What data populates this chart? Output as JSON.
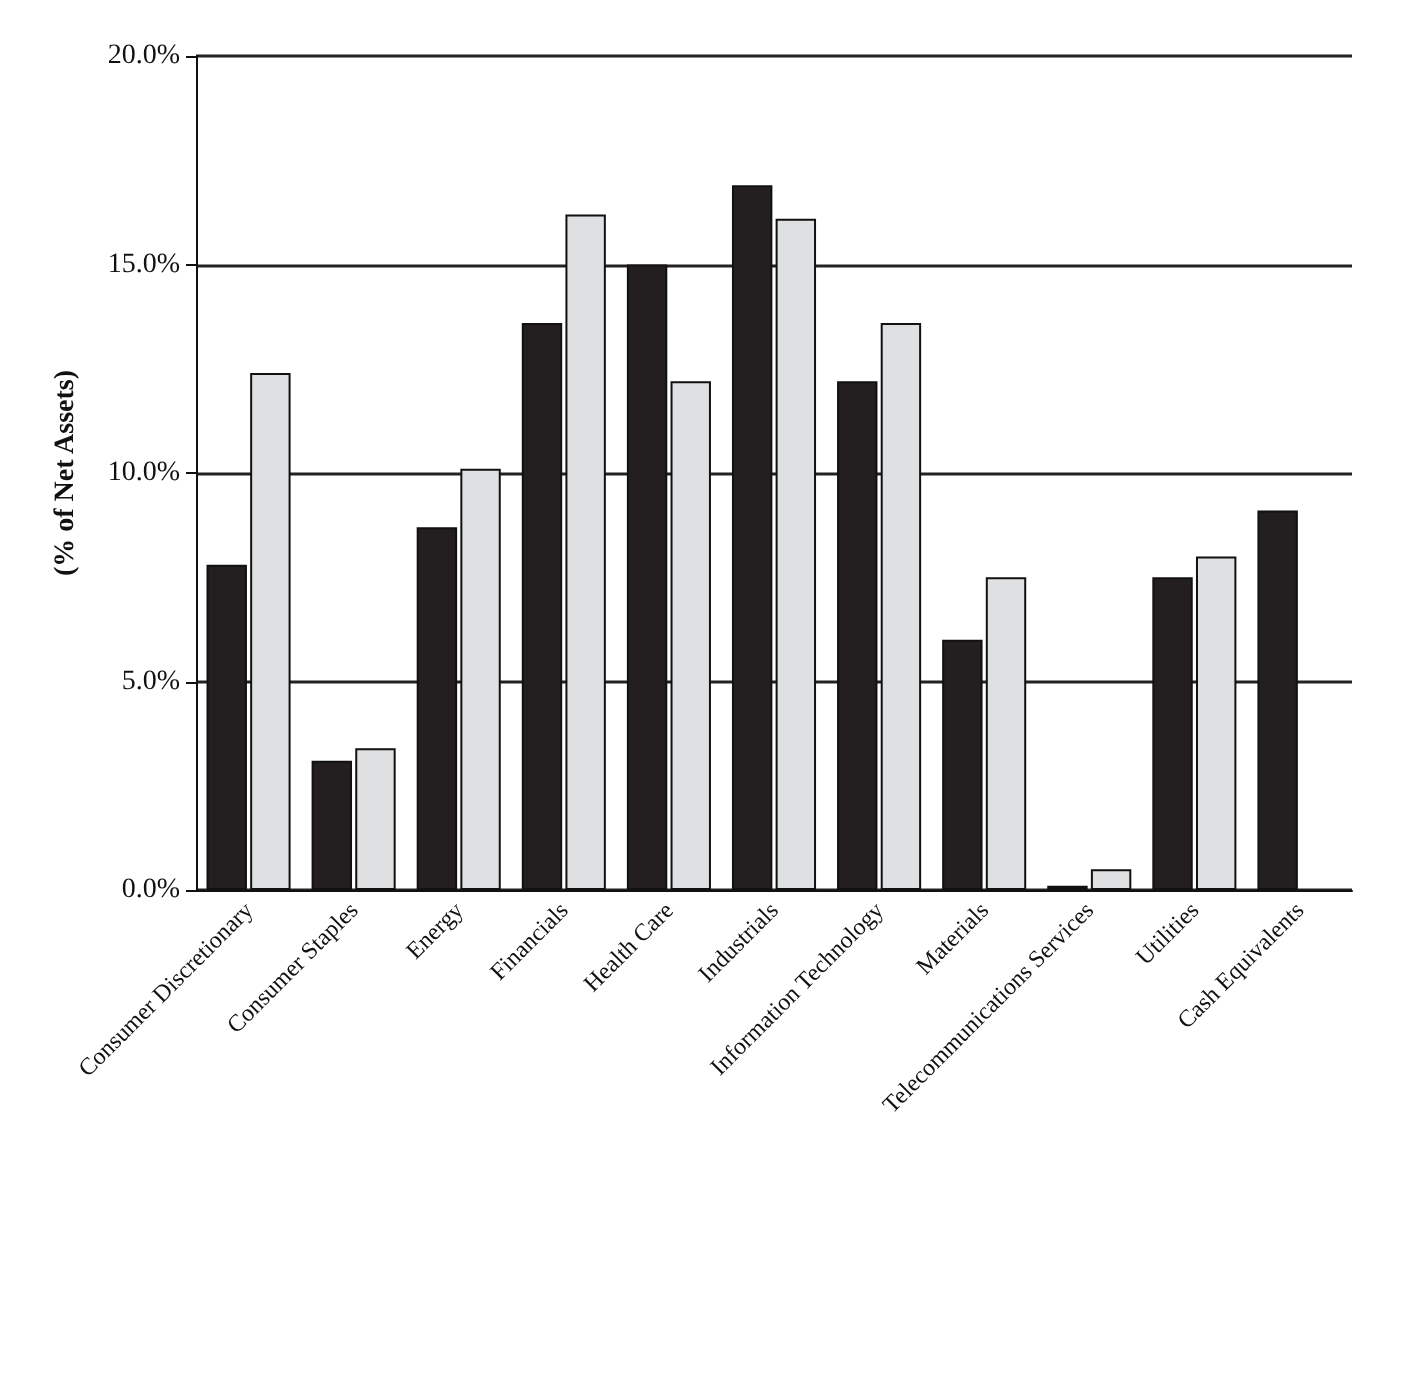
{
  "chart_data": {
    "type": "bar",
    "ylabel": "(% of Net Assets)",
    "categories": [
      "Consumer Discretionary",
      "Consumer Staples",
      "Energy",
      "Financials",
      "Health Care",
      "Industrials",
      "Information Technology",
      "Materials",
      "Telecommunications Services",
      "Utilities",
      "Cash Equivalents"
    ],
    "series": [
      {
        "color": "#231f20",
        "values": [
          7.8,
          3.1,
          8.7,
          13.6,
          15.0,
          16.9,
          12.2,
          6.0,
          0.1,
          7.5,
          9.1
        ]
      },
      {
        "color": "#dfe0e2",
        "values": [
          12.4,
          3.4,
          10.1,
          16.2,
          12.2,
          16.1,
          13.6,
          7.5,
          0.5,
          8.0,
          null
        ]
      }
    ],
    "ylim": [
      0,
      20
    ],
    "yticks": [
      {
        "value": 0,
        "label": "0.0%"
      },
      {
        "value": 5,
        "label": "5.0%"
      },
      {
        "value": 10,
        "label": "10.0%"
      },
      {
        "value": 15,
        "label": "15.0%"
      },
      {
        "value": 20,
        "label": "20.0%"
      }
    ],
    "grid": "y"
  }
}
